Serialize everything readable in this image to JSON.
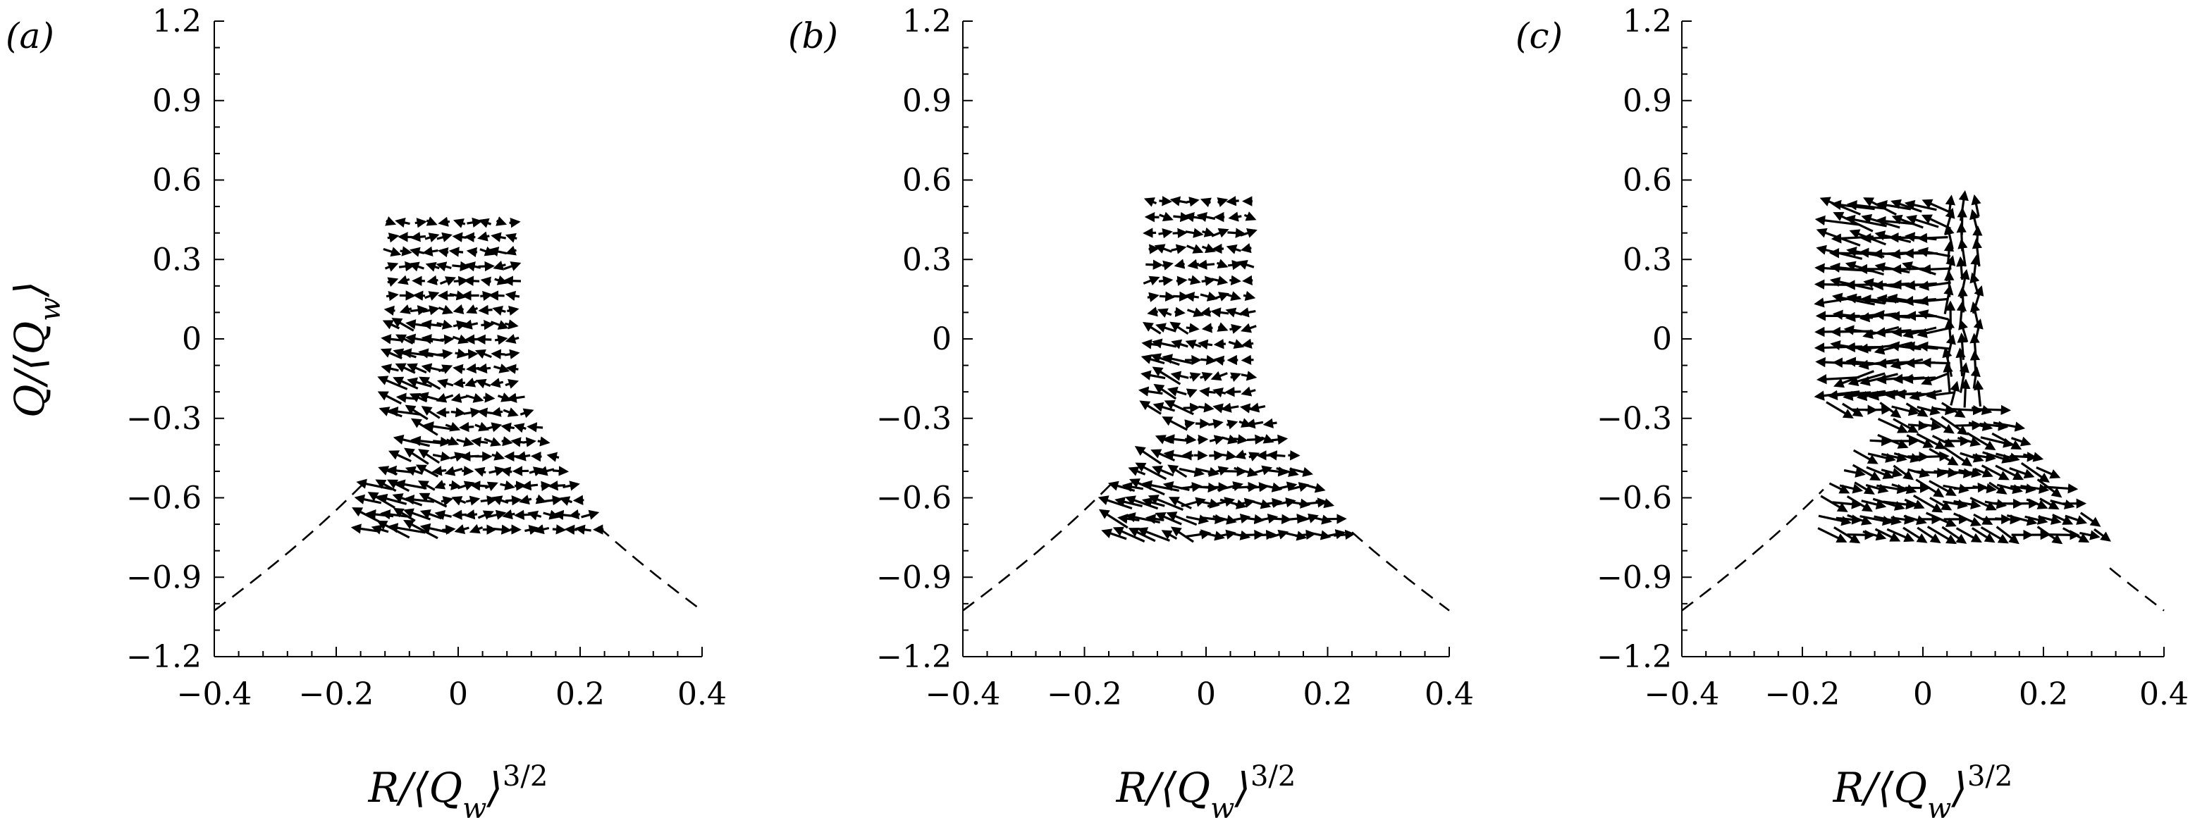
{
  "chart_data": [
    {
      "type": "scatter",
      "panel_label": "(a)",
      "xlabel": "R/⟨Q_w⟩^{3/2}",
      "ylabel": "Q/⟨Q_w⟩",
      "xlim": [
        -0.4,
        0.4
      ],
      "ylim": [
        -1.2,
        1.2
      ],
      "xticks": [
        "−0.4",
        "−0.2",
        "0",
        "0.2",
        "0.4"
      ],
      "yticks": [
        "1.2",
        "0.9",
        "0.6",
        "0.3",
        "0",
        "−0.3",
        "−0.6",
        "−0.9",
        "−1.2"
      ],
      "grid": false,
      "series": [
        {
          "kind": "dashed curve (Q = −3(R/2)^{2/3})"
        },
        {
          "kind": "quiver arrows",
          "region": {
            "q_top": 0.44,
            "q_bottom": -0.72,
            "r_left_top": -0.12,
            "r_right_top": 0.1,
            "r_right_bottom": 0.24
          },
          "dominant_direction": "left and down-left (lower-left region)"
        }
      ]
    },
    {
      "type": "scatter",
      "panel_label": "(b)",
      "xlabel": "R/⟨Q_w⟩^{3/2}",
      "ylabel": "",
      "xlim": [
        -0.4,
        0.4
      ],
      "ylim": [
        -1.2,
        1.2
      ],
      "xticks": [
        "−0.4",
        "−0.2",
        "0",
        "0.2",
        "0.4"
      ],
      "yticks": [
        "1.2",
        "0.9",
        "0.6",
        "0.3",
        "0",
        "−0.3",
        "−0.6",
        "−0.9",
        "−1.2"
      ],
      "grid": false,
      "series": [
        {
          "kind": "dashed curve (Q = −3(R/2)^{2/3})"
        },
        {
          "kind": "quiver arrows",
          "region": {
            "q_top": 0.52,
            "q_bottom": -0.74,
            "r_left_top": -0.1,
            "r_right_top": 0.08,
            "r_right_bottom": 0.24
          },
          "dominant_direction": "left and down-left (lower-left region), right near bottom"
        }
      ]
    },
    {
      "type": "scatter",
      "panel_label": "(c)",
      "xlabel": "R/⟨Q_w⟩^{3/2}",
      "ylabel": "",
      "xlim": [
        -0.4,
        0.4
      ],
      "ylim": [
        -1.2,
        1.2
      ],
      "xticks": [
        "−0.4",
        "−0.2",
        "0",
        "0.2",
        "0.4"
      ],
      "yticks": [
        "1.2",
        "0.9",
        "0.6",
        "0.3",
        "0",
        "−0.3",
        "−0.6",
        "−0.9",
        "−1.2"
      ],
      "grid": false,
      "series": [
        {
          "kind": "dashed curve (Q = −3(R/2)^{2/3})"
        },
        {
          "kind": "quiver arrows",
          "region": {
            "q_top": 0.5,
            "q_bottom": -0.74,
            "r_left_top": -0.15,
            "r_right_top": 0.1,
            "r_right_bottom": 0.31
          },
          "dominant_direction": "left in upper part, clockwise bend on right, right-down near bottom"
        }
      ]
    }
  ]
}
